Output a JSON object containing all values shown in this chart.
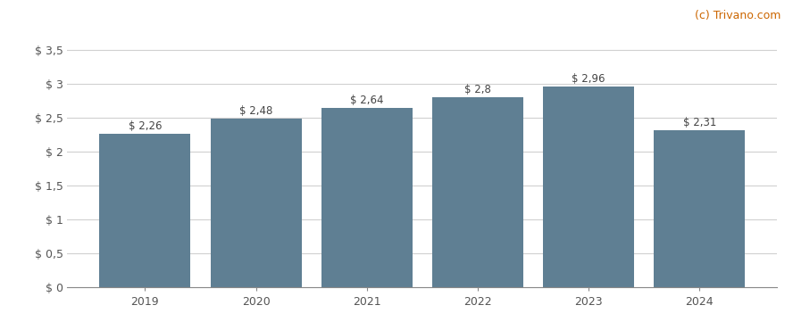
{
  "years": [
    2019,
    2020,
    2021,
    2022,
    2023,
    2024
  ],
  "values": [
    2.26,
    2.48,
    2.64,
    2.8,
    2.96,
    2.31
  ],
  "labels": [
    "$ 2,26",
    "$ 2,48",
    "$ 2,64",
    "$ 2,8",
    "$ 2,96",
    "$ 2,31"
  ],
  "bar_color": "#5f7f93",
  "background_color": "#ffffff",
  "yticks": [
    0,
    0.5,
    1.0,
    1.5,
    2.0,
    2.5,
    3.0,
    3.5
  ],
  "ytick_labels": [
    "$ 0",
    "$ 0,5",
    "$ 1",
    "$ 1,5",
    "$ 2",
    "$ 2,5",
    "$ 3",
    "$ 3,5"
  ],
  "ylim": [
    0,
    3.65
  ],
  "watermark": "(c) Trivano.com",
  "watermark_color": "#cc6600",
  "grid_color": "#d0d0d0",
  "label_fontsize": 8.5,
  "tick_fontsize": 9,
  "watermark_fontsize": 9
}
